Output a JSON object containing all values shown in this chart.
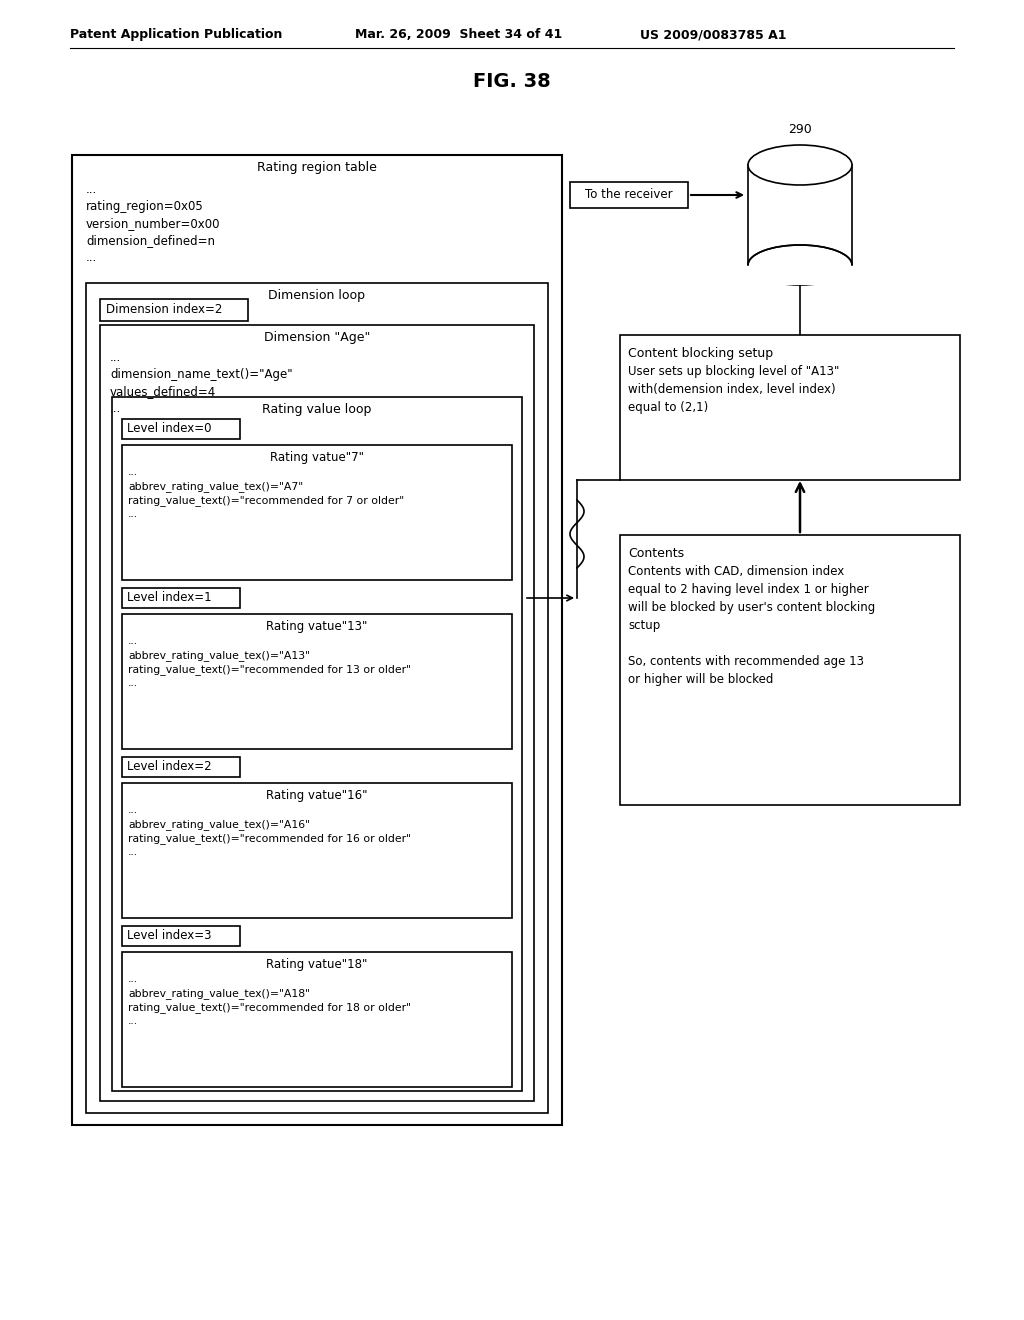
{
  "title": "FIG. 38",
  "header_left": "Patent Application Publication",
  "header_center": "Mar. 26, 2009  Sheet 34 of 41",
  "header_right": "US 2009/0083785 A1",
  "bg_color": "#ffffff",
  "text_color": "#000000",
  "label_290": "290",
  "outer_box_title": "Rating region table",
  "outer_top_lines": [
    "...",
    "rating_region=0x05",
    "version_number=0x00",
    "dimension_defined=n",
    "..."
  ],
  "dim_loop_title": "Dimension loop",
  "dim_index_label": "Dimension index=2",
  "dim_age_title": "Dimension \"Age\"",
  "dim_age_lines": [
    "...",
    "dimension_name_text()=\"Age\"",
    "values_defined=4",
    "..."
  ],
  "rvl_title": "Rating value loop",
  "levels": [
    {
      "index_label": "Level index=0",
      "title": "Rating vatue\"7\"",
      "lines": [
        "...",
        "abbrev_rating_value_tex()=\"A7\"",
        "rating_value_text()=\"recommended for 7 or older\"",
        "..."
      ]
    },
    {
      "index_label": "Level index=1",
      "title": "Rating vatue\"13\"",
      "lines": [
        "...",
        "abbrev_rating_value_tex()=\"A13\"",
        "rating_value_text()=\"recommended for 13 or older\"",
        "..."
      ]
    },
    {
      "index_label": "Level index=2",
      "title": "Rating vatue\"16\"",
      "lines": [
        "...",
        "abbrev_rating_value_tex()=\"A16\"",
        "rating_value_text()=\"recommended for 16 or older\"",
        "..."
      ]
    },
    {
      "index_label": "Level index=3",
      "title": "Rating vatue\"18\"",
      "lines": [
        "...",
        "abbrev_rating_value_tex()=\"A18\"",
        "rating_value_text()=\"recommended for 18 or older\"",
        "..."
      ]
    }
  ],
  "arrow_label": "To the receiver",
  "cbs_lines": [
    "Content blocking setup",
    "User sets up blocking level of \"A13\"",
    "with(demension index, level index)",
    "equal to (2,1)"
  ],
  "cont_lines": [
    "Contents",
    "Contents with CAD, dimension index",
    "equal to 2 having level index 1 or higher",
    "will be blocked by user's content blocking",
    "sctup",
    "",
    "So, contents with recommended age 13",
    "or higher will be blocked"
  ]
}
